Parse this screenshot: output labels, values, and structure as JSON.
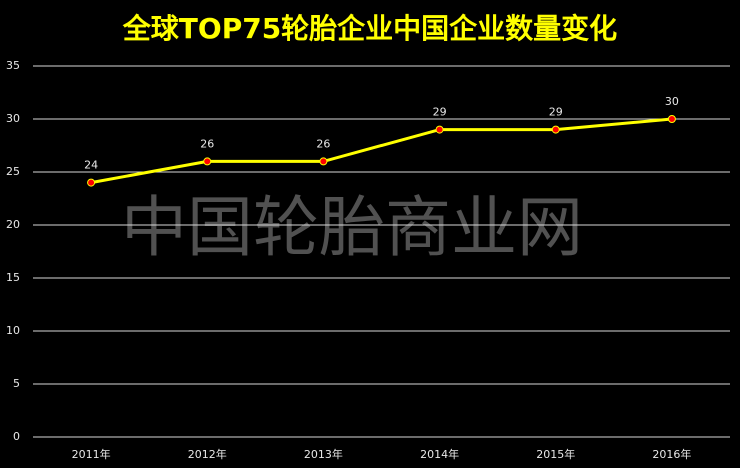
{
  "chart_data": {
    "type": "line",
    "title": "全球TOP75轮胎企业中国企业数量变化",
    "watermark": "中国轮胎商业网",
    "categories": [
      "2011年",
      "2012年",
      "2013年",
      "2014年",
      "2015年",
      "2016年"
    ],
    "values": [
      24,
      26,
      26,
      29,
      29,
      30
    ],
    "color": "#ffff00",
    "marker_color": "#ff0000",
    "ylim": [
      0,
      35
    ],
    "yticks": [
      0,
      5,
      10,
      15,
      20,
      25,
      30,
      35
    ],
    "grid": true
  }
}
